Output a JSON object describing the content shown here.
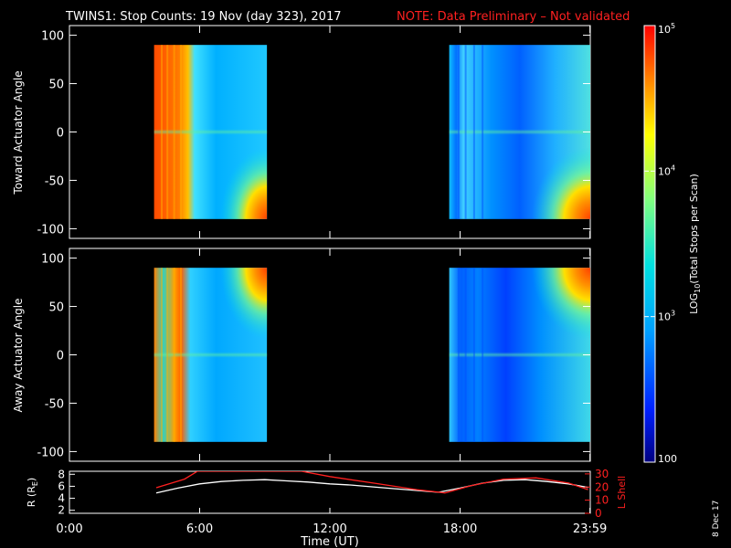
{
  "header": {
    "title": "TWINS1: Stop Counts: 19 Nov (day 323), 2017",
    "note": "NOTE: Data Preliminary – Not validated",
    "note_color": "#ff2020"
  },
  "side_date": "8 Dec 17",
  "colorbar": {
    "label_base": "LOG",
    "label_sub": "10",
    "label_rest": "(Total Stops per Scan)",
    "ticks": [
      {
        "value": 100,
        "text": "100",
        "exp": ""
      },
      {
        "value": 1000,
        "text": "10",
        "exp": "3"
      },
      {
        "value": 10000,
        "text": "10",
        "exp": "4"
      },
      {
        "value": 100000,
        "text": "10",
        "exp": "5"
      }
    ],
    "scale": "log",
    "range": [
      100,
      100000
    ]
  },
  "chart_data": [
    {
      "type": "heatmap",
      "name": "toward",
      "ylabel": "Toward Actuator Angle",
      "xlim": [
        0,
        24
      ],
      "ylim": [
        -110,
        110
      ],
      "yticks": [
        -100,
        -50,
        0,
        50,
        100
      ],
      "angle_range": [
        -90,
        90
      ],
      "data_blocks": [
        {
          "t_start": 3.9,
          "t_end": 9.1
        },
        {
          "t_start": 17.5,
          "t_end": 24.0
        }
      ],
      "colorscale": "log10 counts 100–100000, rainbow"
    },
    {
      "type": "heatmap",
      "name": "away",
      "ylabel": "Away Actuator Angle",
      "xlim": [
        0,
        24
      ],
      "ylim": [
        -110,
        110
      ],
      "yticks": [
        -100,
        -50,
        0,
        50,
        100
      ],
      "angle_range": [
        -90,
        90
      ],
      "data_blocks": [
        {
          "t_start": 3.9,
          "t_end": 9.1
        },
        {
          "t_start": 17.5,
          "t_end": 24.0
        }
      ],
      "colorscale": "log10 counts 100–100000, rainbow"
    },
    {
      "type": "line",
      "name": "ephemeris",
      "xlabel": "Time (UT)",
      "xticks": [
        {
          "value": 0,
          "text": "0:00"
        },
        {
          "value": 6,
          "text": "6:00"
        },
        {
          "value": 12,
          "text": "12:00"
        },
        {
          "value": 18,
          "text": "18:00"
        },
        {
          "value": 23.983,
          "text": "23:59"
        }
      ],
      "y_left": {
        "label_pre": "R (R",
        "label_sub": "E",
        "label_post": ")",
        "ticks": [
          2,
          4,
          6,
          8
        ],
        "lim": [
          1.5,
          8.5
        ]
      },
      "y_right": {
        "label": "L Shell",
        "ticks": [
          0,
          10,
          20,
          30
        ],
        "lim": [
          0,
          32
        ],
        "color": "#ff2020"
      },
      "series": [
        {
          "axis": "left",
          "color": "#ffffff",
          "x": [
            4.0,
            5.0,
            6.0,
            7.0,
            8.0,
            9.0,
            10.0,
            11.0,
            12.0,
            13.0,
            14.0,
            15.0,
            16.0,
            17.0,
            18.0,
            19.0,
            20.0,
            21.0,
            22.0,
            23.0,
            23.9
          ],
          "y": [
            4.9,
            5.7,
            6.4,
            6.8,
            7.0,
            7.1,
            6.9,
            6.7,
            6.4,
            6.2,
            5.9,
            5.6,
            5.3,
            5.0,
            5.7,
            6.5,
            7.0,
            7.1,
            6.8,
            6.4,
            5.8
          ]
        },
        {
          "axis": "right",
          "color": "#ff2020",
          "x": [
            4.0,
            5.3,
            5.9,
            10.7,
            12.0,
            14.0,
            16.0,
            17.3,
            18.5,
            20.0,
            21.5,
            23.0,
            23.9
          ],
          "y": [
            19.5,
            26.0,
            32.0,
            32.0,
            28.0,
            23.0,
            18.0,
            15.5,
            21.0,
            26.0,
            27.0,
            23.0,
            18.0
          ]
        }
      ]
    }
  ]
}
